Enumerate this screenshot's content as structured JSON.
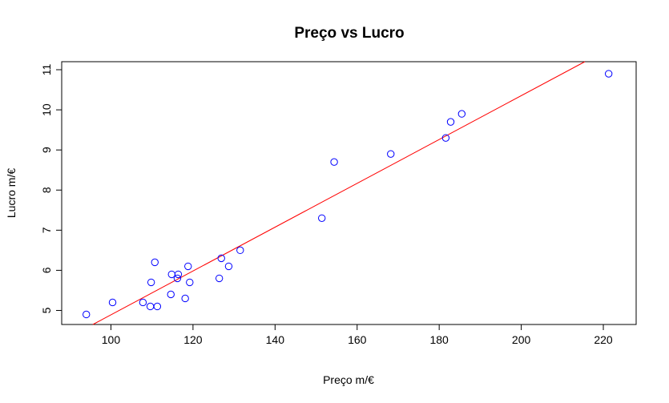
{
  "chart_data": {
    "type": "scatter",
    "title": "Preço vs Lucro",
    "xlabel": "Preço m/€",
    "ylabel": "Lucro m/€",
    "xlim": [
      88,
      228
    ],
    "ylim": [
      4.65,
      11.2
    ],
    "xticks": [
      100,
      120,
      140,
      160,
      180,
      200,
      220
    ],
    "yticks": [
      5,
      6,
      7,
      8,
      9,
      10,
      11
    ],
    "grid": false,
    "point_color": "#0000ff",
    "line_color": "#ff0000",
    "points": [
      {
        "x": 94,
        "y": 4.9
      },
      {
        "x": 100.4,
        "y": 5.2
      },
      {
        "x": 107.8,
        "y": 5.2
      },
      {
        "x": 109.6,
        "y": 5.1
      },
      {
        "x": 111.3,
        "y": 5.1
      },
      {
        "x": 109.8,
        "y": 5.7
      },
      {
        "x": 110.7,
        "y": 6.2
      },
      {
        "x": 114.6,
        "y": 5.4
      },
      {
        "x": 114.8,
        "y": 5.9
      },
      {
        "x": 116.2,
        "y": 5.8
      },
      {
        "x": 116.4,
        "y": 5.9
      },
      {
        "x": 118.1,
        "y": 5.3
      },
      {
        "x": 118.8,
        "y": 6.1
      },
      {
        "x": 119.2,
        "y": 5.7
      },
      {
        "x": 126.4,
        "y": 5.8
      },
      {
        "x": 126.9,
        "y": 6.3
      },
      {
        "x": 128.7,
        "y": 6.1
      },
      {
        "x": 131.5,
        "y": 6.5
      },
      {
        "x": 151.4,
        "y": 7.3
      },
      {
        "x": 154.4,
        "y": 8.7
      },
      {
        "x": 168.2,
        "y": 8.9
      },
      {
        "x": 181.6,
        "y": 9.3
      },
      {
        "x": 182.8,
        "y": 9.7
      },
      {
        "x": 185.5,
        "y": 9.9
      },
      {
        "x": 221.3,
        "y": 10.9
      }
    ],
    "regression_line": {
      "x": [
        95.6,
        215.5
      ],
      "y": [
        4.65,
        11.2
      ]
    }
  }
}
